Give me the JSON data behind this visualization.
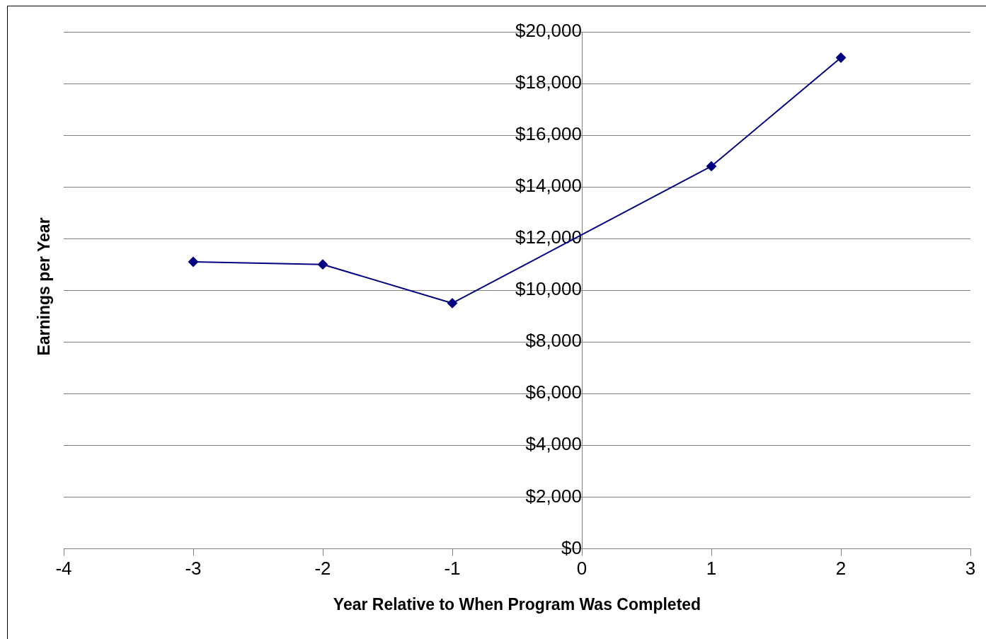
{
  "chart_data": {
    "type": "line",
    "xlabel": "Year Relative to When Program Was Completed",
    "ylabel": "Earnings per Year",
    "x": [
      -3,
      -2,
      -1,
      1,
      2
    ],
    "series": [
      {
        "color": "#000080",
        "values": [
          11100,
          11000,
          9500,
          14800,
          19000
        ]
      }
    ],
    "xlim": [
      -4,
      3
    ],
    "xticks": [
      -4,
      -3,
      -2,
      -1,
      0,
      1,
      2,
      3
    ],
    "ylim": [
      0,
      20000
    ],
    "yticks": [
      {
        "value": 0,
        "label": "$0"
      },
      {
        "value": 2000,
        "label": "$2,000"
      },
      {
        "value": 4000,
        "label": "$4,000"
      },
      {
        "value": 6000,
        "label": "$6,000"
      },
      {
        "value": 8000,
        "label": "$8,000"
      },
      {
        "value": 10000,
        "label": "$10,000"
      },
      {
        "value": 12000,
        "label": "$12,000"
      },
      {
        "value": 14000,
        "label": "$14,000"
      },
      {
        "value": 16000,
        "label": "$16,000"
      },
      {
        "value": 18000,
        "label": "$18,000"
      },
      {
        "value": 20000,
        "label": "$20,000"
      }
    ],
    "grid": "y",
    "legend": false,
    "marker": "diamond",
    "line_style": "solid"
  }
}
